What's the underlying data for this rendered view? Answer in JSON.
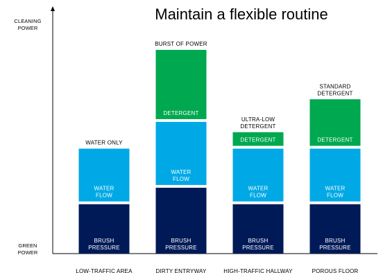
{
  "chart_data": {
    "type": "bar",
    "stacked": true,
    "title": "Maintain a flexible routine",
    "y_axis_top_label": [
      "CLEANING",
      "POWER"
    ],
    "y_axis_bottom_label": [
      "GREEN",
      "POWER"
    ],
    "categories": [
      "LOW-TRAFFIC AREA",
      "DIRTY ENTRYWAY",
      "HIGH-TRAFFIC HALLWAY",
      "POROUS FLOOR"
    ],
    "bar_labels": [
      [
        "WATER ONLY"
      ],
      [
        "BURST OF POWER"
      ],
      [
        "ULTRA-LOW",
        "DETERGENT"
      ],
      [
        "STANDARD",
        "DETERGENT"
      ]
    ],
    "ylim": [
      0,
      100
    ],
    "series": [
      {
        "segment_label": [
          "BRUSH",
          "PRESSURE"
        ],
        "color": "#001a57",
        "values": [
          24,
          32,
          24,
          24
        ]
      },
      {
        "segment_label": [
          "WATER",
          "FLOW"
        ],
        "color": "#00a9e6",
        "values": [
          27,
          32,
          27,
          27
        ]
      },
      {
        "segment_label": [
          "DETERGENT"
        ],
        "color": "#00a84f",
        "values": [
          0,
          35,
          8,
          24
        ]
      }
    ],
    "grid": false,
    "legend": "none"
  }
}
